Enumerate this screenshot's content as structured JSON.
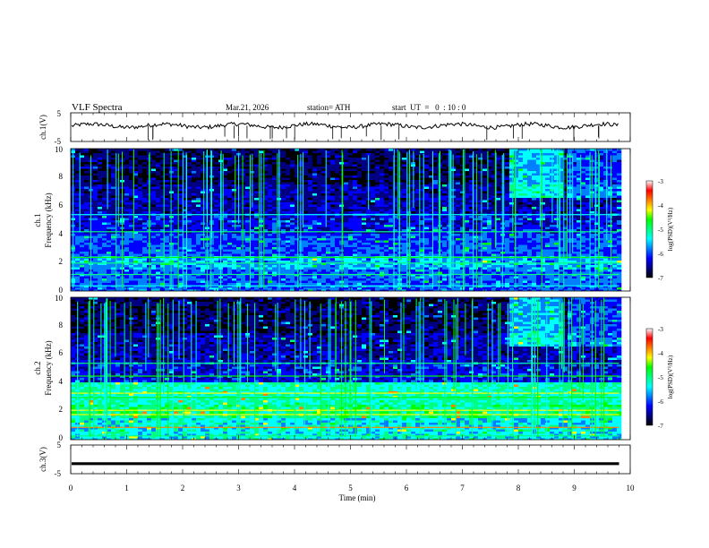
{
  "chart_data": {
    "type": "heatmap",
    "header": {
      "title": "VLF  Spectra",
      "date": "Mar.21, 2026",
      "station": "station= ATH",
      "start": "start  UT  =   0  : 10 : 0"
    },
    "xlabel": "Time  (min)",
    "xlim": [
      0,
      10
    ],
    "xticks": [
      "0",
      "1",
      "2",
      "3",
      "4",
      "5",
      "6",
      "7",
      "8",
      "9",
      "10"
    ],
    "data_end_min": 9.8,
    "panels": [
      {
        "id": "ch1-waveform",
        "type": "line",
        "ylabel": "ch.1(V)",
        "ylim": [
          -5,
          5
        ],
        "yticks": [
          "5",
          "-5"
        ],
        "approx_level": 0.5
      },
      {
        "id": "ch1-spectrogram",
        "type": "heatmap",
        "ylabel_line1": "ch.1",
        "ylabel_line2": "Frequency (kHz)",
        "ylim": [
          0,
          10
        ],
        "yticks": [
          "0",
          "2",
          "4",
          "6",
          "8",
          "10"
        ],
        "colorbar": {
          "label": "log(PSD)(V²/Hz)",
          "range": [
            -7,
            -3
          ],
          "ticks": [
            "-3",
            "-4",
            "-5",
            "-6",
            "-7"
          ]
        }
      },
      {
        "id": "ch2-spectrogram",
        "type": "heatmap",
        "ylabel_line1": "ch.2",
        "ylabel_line2": "Frequency (kHz)",
        "ylim": [
          0,
          10
        ],
        "yticks": [
          "0",
          "2",
          "4",
          "6",
          "8",
          "10"
        ],
        "colorbar": {
          "label": "log(PSD)(V²/Hz)",
          "range": [
            -7,
            -3
          ],
          "ticks": [
            "-3",
            "-4",
            "-5",
            "-6",
            "-7"
          ]
        }
      },
      {
        "id": "ch3-waveform",
        "type": "line",
        "ylabel": "ch.3(V)",
        "ylim": [
          -5,
          5
        ],
        "yticks": [
          "5",
          "-5"
        ],
        "approx_level": -1.5
      }
    ],
    "colormap": [
      "#000000",
      "#000080",
      "#0000ff",
      "#0080ff",
      "#00ffff",
      "#00ff80",
      "#00ff00",
      "#ffff00",
      "#ff8000",
      "#ff0000",
      "#ffffff"
    ]
  }
}
